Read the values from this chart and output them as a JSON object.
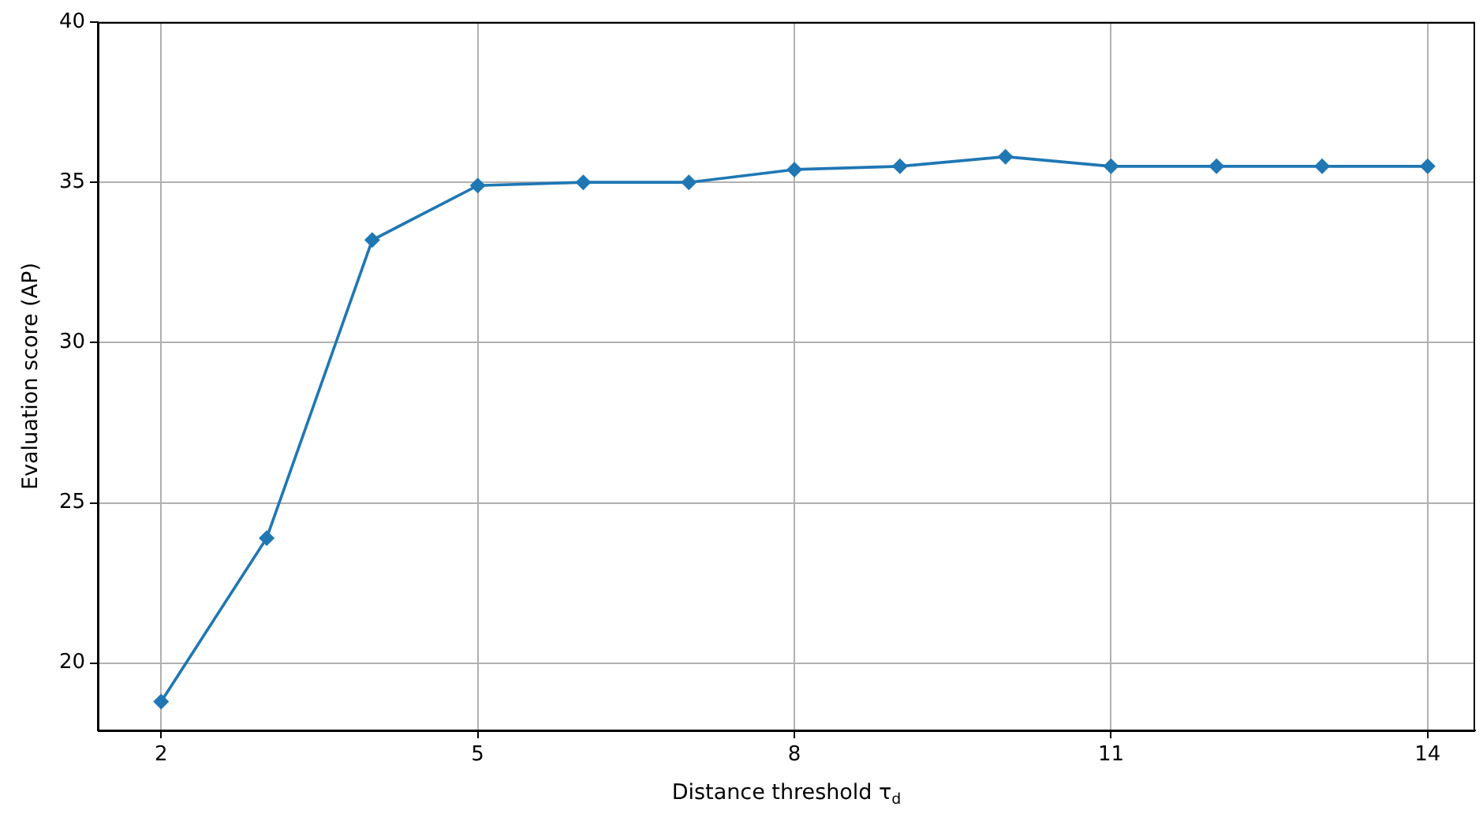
{
  "chart_data": {
    "type": "line",
    "xlabel": "Distance threshold τ$_{d}$",
    "ylabel": "Evaluation score (AP)",
    "x": [
      2,
      3,
      4,
      5,
      6,
      7,
      8,
      9,
      10,
      11,
      12,
      13,
      14
    ],
    "series": [
      {
        "color": "#1f77b4",
        "values": [
          18.8,
          23.9,
          33.2,
          34.9,
          35.0,
          35.0,
          35.4,
          35.5,
          35.8,
          35.5,
          35.5,
          35.5,
          35.5
        ]
      }
    ],
    "xlim": [
      1.4,
      14.45
    ],
    "ylim": [
      17.9,
      40
    ],
    "xticks": [
      2,
      5,
      8,
      11,
      14
    ],
    "yticks": [
      20,
      25,
      30,
      35,
      40
    ],
    "grid": true,
    "marker": "diamond",
    "line_style": "solid"
  }
}
